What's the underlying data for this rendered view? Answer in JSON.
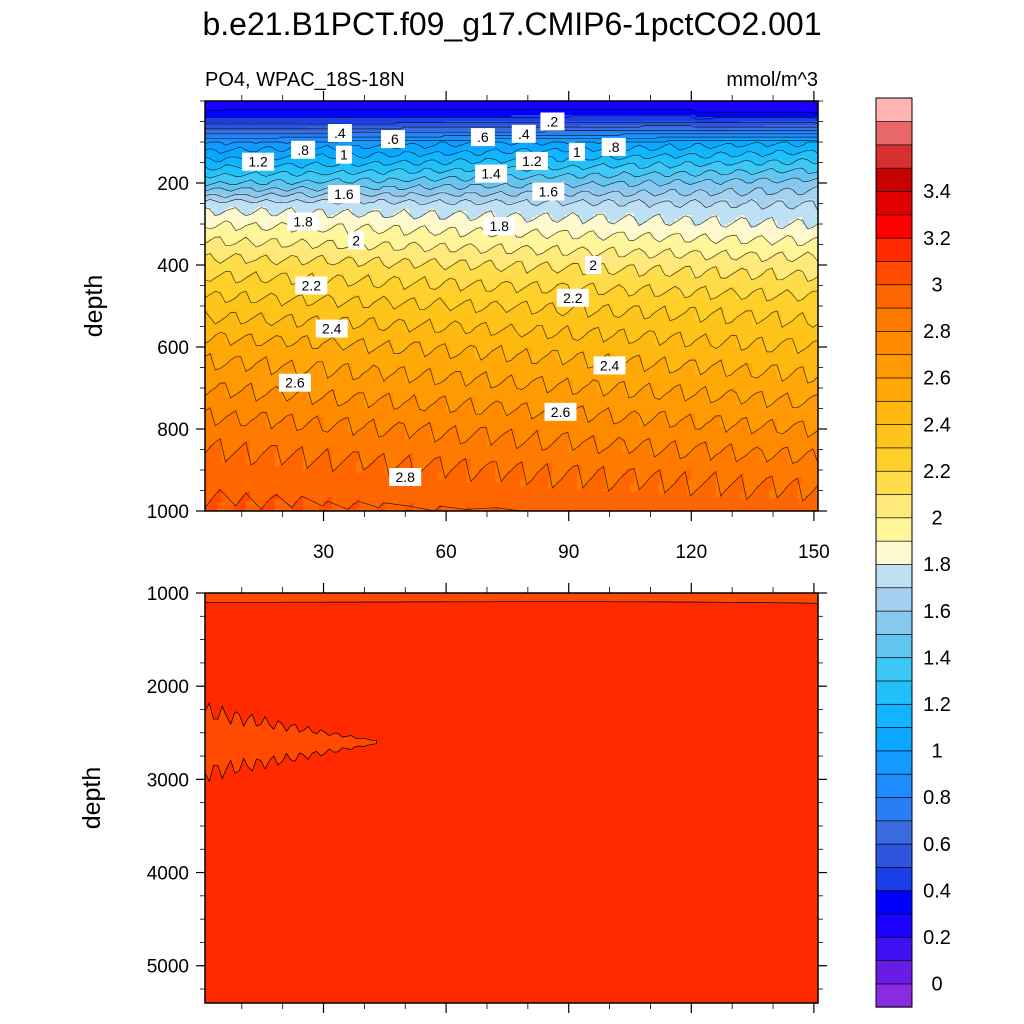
{
  "chart_data": {
    "type": "heatmap",
    "title": "b.e21.B1PCT.f09_g17.CMIP6-1pctCO2.001",
    "left_subtitle": "PO4, WPAC_18S-18N",
    "right_subtitle": "mmol/m^3",
    "panels": [
      {
        "name": "upper",
        "ylabel": "depth",
        "ylim": [
          1000,
          0
        ],
        "xlim": [
          1,
          151
        ],
        "x_ticks": [
          30,
          60,
          90,
          120,
          150
        ],
        "y_ticks": [
          200,
          400,
          600,
          800,
          1000
        ],
        "surface_min": [
          0.15,
          0.15,
          0.15,
          0.15,
          0.1,
          0.05
        ],
        "mid_depth_levels": {
          "depths": [
            100,
            200,
            250,
            300,
            400,
            500,
            600,
            700,
            800,
            900,
            1000
          ],
          "west_values": [
            0.8,
            1.3,
            1.65,
            1.8,
            2.05,
            2.25,
            2.45,
            2.6,
            2.75,
            2.85,
            2.9
          ],
          "east_values": [
            1.0,
            1.45,
            1.6,
            1.7,
            1.95,
            2.15,
            2.3,
            2.45,
            2.6,
            2.75,
            2.85
          ]
        },
        "contour_labels": [
          {
            "text": ".2",
            "x": 86,
            "y": 50
          },
          {
            "text": ".4",
            "x": 34,
            "y": 78
          },
          {
            "text": ".6",
            "x": 47,
            "y": 93
          },
          {
            "text": ".6",
            "x": 69,
            "y": 88
          },
          {
            "text": ".4",
            "x": 79,
            "y": 80
          },
          {
            "text": ".8",
            "x": 25,
            "y": 119
          },
          {
            "text": "1",
            "x": 35,
            "y": 131
          },
          {
            "text": "1",
            "x": 92,
            "y": 124
          },
          {
            "text": ".8",
            "x": 101,
            "y": 112
          },
          {
            "text": "1.2",
            "x": 14,
            "y": 148
          },
          {
            "text": "1.2",
            "x": 81,
            "y": 146
          },
          {
            "text": "1.4",
            "x": 71,
            "y": 177
          },
          {
            "text": "1.6",
            "x": 35,
            "y": 227
          },
          {
            "text": "1.6",
            "x": 85,
            "y": 221
          },
          {
            "text": "1.8",
            "x": 25,
            "y": 294
          },
          {
            "text": "1.8",
            "x": 73,
            "y": 305
          },
          {
            "text": "2",
            "x": 38,
            "y": 340
          },
          {
            "text": "2",
            "x": 96,
            "y": 400
          },
          {
            "text": "2.2",
            "x": 27,
            "y": 450
          },
          {
            "text": "2.2",
            "x": 91,
            "y": 480
          },
          {
            "text": "2.4",
            "x": 32,
            "y": 555
          },
          {
            "text": "2.4",
            "x": 100,
            "y": 645
          },
          {
            "text": "2.6",
            "x": 23,
            "y": 687
          },
          {
            "text": "2.6",
            "x": 88,
            "y": 758
          },
          {
            "text": "2.8",
            "x": 50,
            "y": 917
          }
        ]
      },
      {
        "name": "lower",
        "ylabel": "depth",
        "ylim": [
          5400,
          1000
        ],
        "xlim": [
          1,
          151
        ],
        "x_ticks": [
          30,
          60,
          90,
          120,
          150
        ],
        "y_ticks": [
          1000,
          2000,
          3000,
          4000,
          5000
        ],
        "fill_value": 3.0,
        "notes": "near-uniform field; slightly lower (2.9) tongue near west side around 2300-2900 m"
      }
    ],
    "colorbar": {
      "levels": [
        -0.1,
        0,
        0.1,
        0.2,
        0.3,
        0.4,
        0.5,
        0.6,
        0.7,
        0.8,
        0.9,
        1.0,
        1.1,
        1.2,
        1.3,
        1.4,
        1.5,
        1.6,
        1.7,
        1.8,
        1.9,
        2.0,
        2.1,
        2.2,
        2.3,
        2.4,
        2.5,
        2.6,
        2.7,
        2.8,
        2.9,
        3.0,
        3.1,
        3.2,
        3.3,
        3.4,
        3.5,
        3.6
      ],
      "colors": [
        "#8a2be2",
        "#6a1be6",
        "#3f10f0",
        "#1a00ff",
        "#0000ff",
        "#1a3ee8",
        "#2d55e0",
        "#3a6ae0",
        "#2a7ef5",
        "#1e8cff",
        "#1499ff",
        "#0ba6ff",
        "#10b4ff",
        "#20c0fa",
        "#3ec8f5",
        "#62c5f0",
        "#86c8ee",
        "#a5d0ef",
        "#bee0f5",
        "#fff9cf",
        "#fff59a",
        "#ffe97a",
        "#ffdc4a",
        "#ffd02a",
        "#ffc41a",
        "#ffb810",
        "#ffa808",
        "#ff9a05",
        "#ff8a00",
        "#ff7a00",
        "#ff6600",
        "#ff4a00",
        "#ff2a00",
        "#ff0000",
        "#e00000",
        "#c80000",
        "#d83030",
        "#e86868",
        "#ffb3b3"
      ],
      "tick_labels": [
        "0",
        "0.2",
        "0.4",
        "0.6",
        "0.8",
        "1",
        "1.2",
        "1.4",
        "1.6",
        "1.8",
        "2",
        "2.2",
        "2.4",
        "2.6",
        "2.8",
        "3",
        "3.2",
        "3.4"
      ],
      "tick_values": [
        0,
        0.2,
        0.4,
        0.6,
        0.8,
        1.0,
        1.2,
        1.4,
        1.6,
        1.8,
        2.0,
        2.2,
        2.4,
        2.6,
        2.8,
        3.0,
        3.2,
        3.4
      ]
    }
  }
}
